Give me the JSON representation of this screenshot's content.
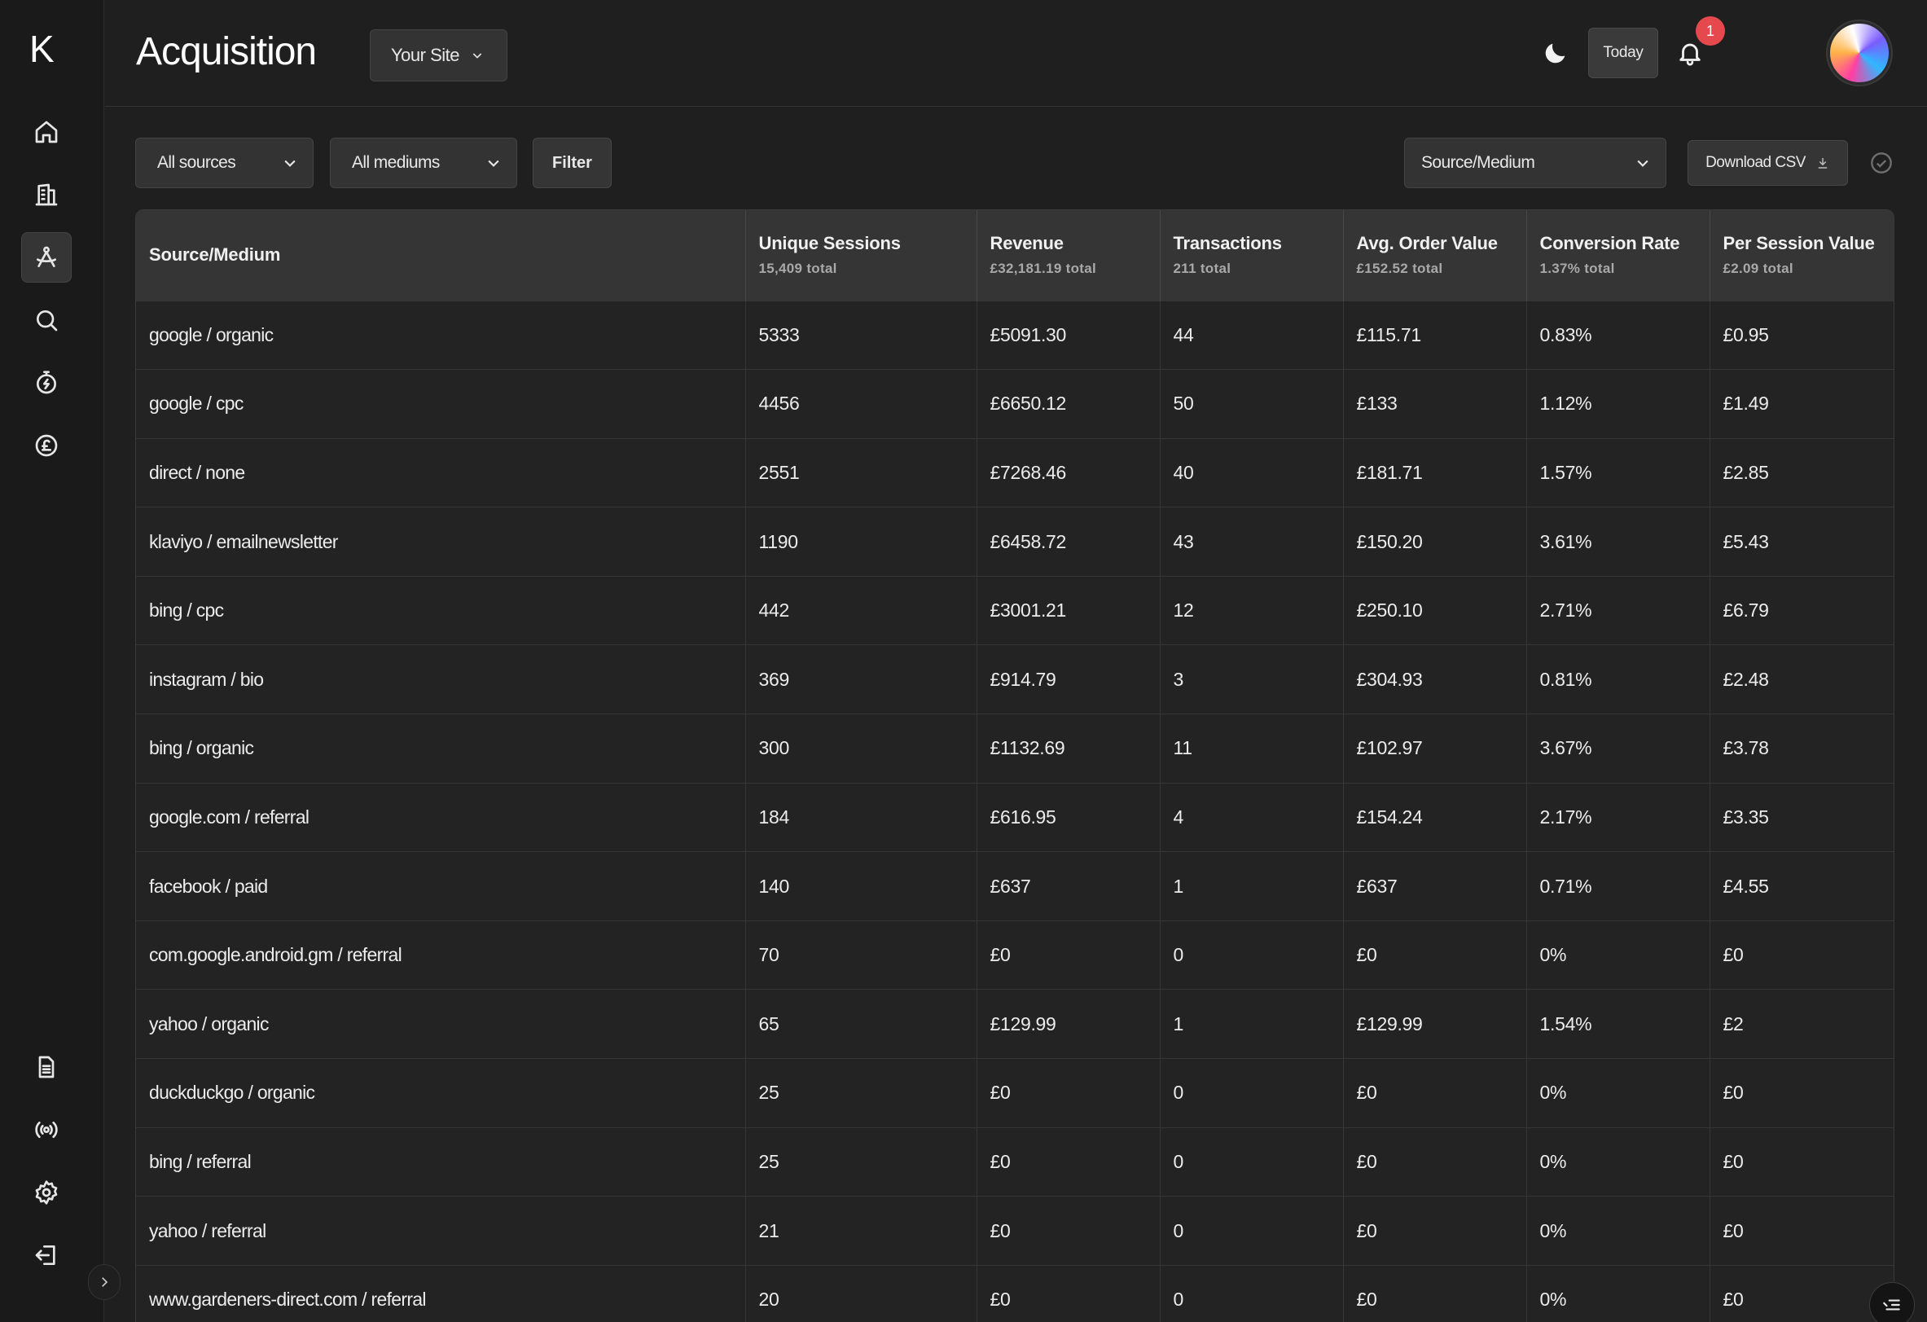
{
  "app": {
    "logo_text": "K"
  },
  "header": {
    "title": "Acquisition",
    "site_select": "Your Site",
    "today_label": "Today",
    "notification_count": "1"
  },
  "toolbar": {
    "sources_select": "All sources",
    "mediums_select": "All mediums",
    "filter_label": "Filter",
    "group_select": "Source/Medium",
    "download_label": "Download CSV"
  },
  "sidebar": {
    "items": [
      {
        "icon": "home-icon"
      },
      {
        "icon": "building-icon"
      },
      {
        "icon": "acquisition-icon",
        "active": true
      },
      {
        "icon": "search-icon"
      },
      {
        "icon": "stopwatch-icon"
      },
      {
        "icon": "pound-coin-icon"
      },
      {
        "icon": "document-icon"
      },
      {
        "icon": "broadcast-icon"
      },
      {
        "icon": "gear-icon"
      },
      {
        "icon": "logout-icon"
      }
    ]
  },
  "table": {
    "columns": [
      {
        "label": "Source/Medium",
        "sub": ""
      },
      {
        "label": "Unique Sessions",
        "sub": "15,409 total"
      },
      {
        "label": "Revenue",
        "sub": "£32,181.19 total"
      },
      {
        "label": "Transactions",
        "sub": "211 total"
      },
      {
        "label": "Avg. Order Value",
        "sub": "£152.52 total"
      },
      {
        "label": "Conversion Rate",
        "sub": "1.37% total"
      },
      {
        "label": "Per Session Value",
        "sub": "£2.09 total"
      }
    ],
    "rows": [
      [
        "google / organic",
        "5333",
        "£5091.30",
        "44",
        "£115.71",
        "0.83%",
        "£0.95"
      ],
      [
        "google / cpc",
        "4456",
        "£6650.12",
        "50",
        "£133",
        "1.12%",
        "£1.49"
      ],
      [
        "direct / none",
        "2551",
        "£7268.46",
        "40",
        "£181.71",
        "1.57%",
        "£2.85"
      ],
      [
        "klaviyo / emailnewsletter",
        "1190",
        "£6458.72",
        "43",
        "£150.20",
        "3.61%",
        "£5.43"
      ],
      [
        "bing / cpc",
        "442",
        "£3001.21",
        "12",
        "£250.10",
        "2.71%",
        "£6.79"
      ],
      [
        "instagram / bio",
        "369",
        "£914.79",
        "3",
        "£304.93",
        "0.81%",
        "£2.48"
      ],
      [
        "bing / organic",
        "300",
        "£1132.69",
        "11",
        "£102.97",
        "3.67%",
        "£3.78"
      ],
      [
        "google.com / referral",
        "184",
        "£616.95",
        "4",
        "£154.24",
        "2.17%",
        "£3.35"
      ],
      [
        "facebook / paid",
        "140",
        "£637",
        "1",
        "£637",
        "0.71%",
        "£4.55"
      ],
      [
        "com.google.android.gm / referral",
        "70",
        "£0",
        "0",
        "£0",
        "0%",
        "£0"
      ],
      [
        "yahoo / organic",
        "65",
        "£129.99",
        "1",
        "£129.99",
        "1.54%",
        "£2"
      ],
      [
        "duckduckgo / organic",
        "25",
        "£0",
        "0",
        "£0",
        "0%",
        "£0"
      ],
      [
        "bing / referral",
        "25",
        "£0",
        "0",
        "£0",
        "0%",
        "£0"
      ],
      [
        "yahoo / referral",
        "21",
        "£0",
        "0",
        "£0",
        "0%",
        "£0"
      ],
      [
        "www.gardeners-direct.com / referral",
        "20",
        "£0",
        "0",
        "£0",
        "0%",
        "£0"
      ]
    ]
  }
}
